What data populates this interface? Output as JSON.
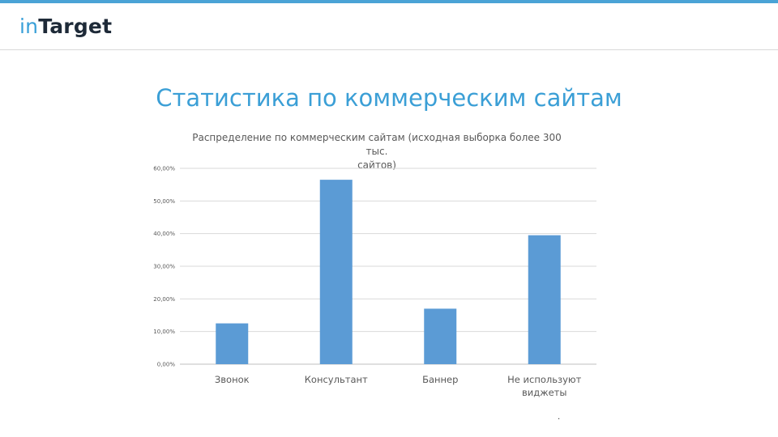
{
  "header": {
    "logo_part1": "in",
    "logo_part2": "Target",
    "accent_color": "#4aa3d6"
  },
  "slide": {
    "title": "Статистика по коммерческим сайтам",
    "footnote": "."
  },
  "chart_data": {
    "type": "bar",
    "title_lines": [
      "Распределение по коммерческим сайтам (исходная выборка более 300 тыс.",
      "сайтов)"
    ],
    "categories": [
      [
        "Звонок"
      ],
      [
        "Консультант"
      ],
      [
        "Баннер"
      ],
      [
        "Не используют",
        "виджеты"
      ]
    ],
    "values": [
      12.5,
      56.5,
      17.0,
      39.5
    ],
    "ylim": [
      0,
      60
    ],
    "yticks": [
      0,
      10,
      20,
      30,
      40,
      50,
      60
    ],
    "ytick_labels": [
      "0,00%",
      "10,00%",
      "20,00%",
      "30,00%",
      "40,00%",
      "50,00%",
      "60,00%"
    ],
    "grid": true,
    "bar_color": "#5b9bd5"
  }
}
